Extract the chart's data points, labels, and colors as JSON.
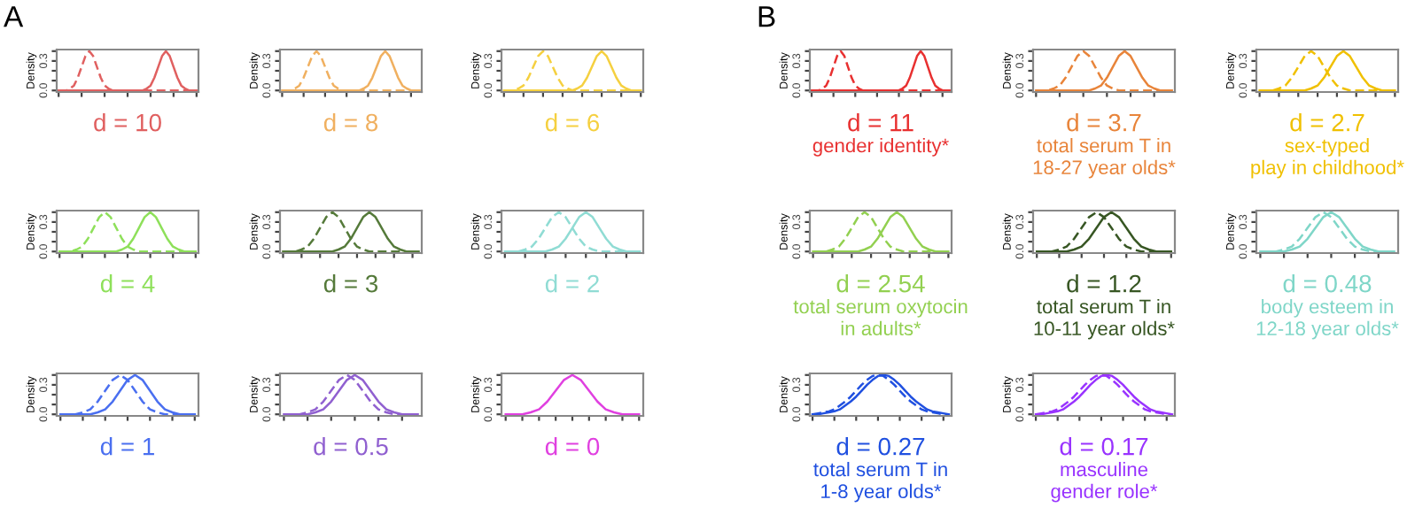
{
  "chart_data": [
    {
      "type": "line",
      "title": "d = 10",
      "annotations": [
        "A"
      ],
      "ylabel": "Density",
      "ylim": [
        -0.016,
        0.416
      ],
      "yticks": [
        {
          "value": 0.0,
          "label": "0.0"
        },
        {
          "value": 0.1,
          "label": null
        },
        {
          "value": 0.2,
          "label": null
        },
        {
          "value": 0.3,
          "label": "0.3"
        },
        {
          "value": 0.4,
          "label": null
        }
      ],
      "tick_labels": "y",
      "categories": [
        null,
        null,
        null,
        null,
        null,
        null,
        null,
        null,
        null,
        null,
        null,
        null,
        null,
        null,
        null,
        null,
        null,
        null,
        null,
        null,
        null,
        null,
        null,
        null,
        null,
        null,
        null,
        null,
        null,
        null,
        null,
        null,
        null,
        null,
        null,
        null,
        null
      ],
      "series": [
        {
          "color": "#e06060",
          "line_style": "dashed",
          "values": [
            0,
            0,
            0,
            0.02,
            0.05,
            0.13,
            0.24,
            0.35,
            0.4,
            0.35,
            0.24,
            0.13,
            0.05,
            0.02,
            0,
            0,
            0,
            0,
            0,
            0,
            0,
            0,
            0,
            0,
            0,
            0,
            0,
            0,
            0,
            0,
            0,
            0,
            0,
            0,
            0,
            0,
            0
          ]
        },
        {
          "color": "#e06060",
          "line_style": "solid",
          "values": [
            0,
            0,
            0,
            0,
            0,
            0,
            0,
            0,
            0,
            0,
            0,
            0,
            0,
            0,
            0,
            0,
            0,
            0,
            0,
            0,
            0,
            0,
            0,
            0.02,
            0.05,
            0.13,
            0.24,
            0.35,
            0.4,
            0.35,
            0.24,
            0.13,
            0.05,
            0.02,
            0,
            0,
            0
          ]
        }
      ]
    },
    {
      "type": "line",
      "title": "d = 8",
      "ylabel": "Density",
      "ylim": [
        -0.016,
        0.416
      ],
      "yticks": [
        {
          "value": 0.0,
          "label": "0.0"
        },
        {
          "value": 0.1,
          "label": null
        },
        {
          "value": 0.2,
          "label": null
        },
        {
          "value": 0.3,
          "label": "0.3"
        },
        {
          "value": 0.4,
          "label": null
        }
      ],
      "tick_labels": "y",
      "categories": [
        null,
        null,
        null,
        null,
        null,
        null,
        null,
        null,
        null,
        null,
        null,
        null,
        null,
        null,
        null,
        null,
        null,
        null,
        null,
        null,
        null,
        null,
        null,
        null,
        null,
        null,
        null,
        null,
        null,
        null,
        null,
        null,
        null
      ],
      "series": [
        {
          "color": "#f0b060",
          "line_style": "dashed",
          "values": [
            0,
            0,
            0,
            0.02,
            0.05,
            0.13,
            0.24,
            0.35,
            0.4,
            0.35,
            0.24,
            0.13,
            0.05,
            0.02,
            0,
            0,
            0,
            0,
            0,
            0,
            0,
            0,
            0,
            0,
            0,
            0,
            0,
            0,
            0,
            0,
            0,
            0,
            0
          ]
        },
        {
          "color": "#f0b060",
          "line_style": "solid",
          "values": [
            0,
            0,
            0,
            0,
            0,
            0,
            0,
            0,
            0,
            0,
            0,
            0,
            0,
            0,
            0,
            0,
            0,
            0,
            0,
            0.02,
            0.05,
            0.13,
            0.24,
            0.35,
            0.4,
            0.35,
            0.24,
            0.13,
            0.05,
            0.02,
            0,
            0,
            0
          ]
        }
      ]
    },
    {
      "type": "line",
      "title": "d = 6",
      "ylabel": "Density",
      "ylim": [
        -0.016,
        0.416
      ],
      "yticks": [
        {
          "value": 0.0,
          "label": "0.0"
        },
        {
          "value": 0.1,
          "label": null
        },
        {
          "value": 0.2,
          "label": null
        },
        {
          "value": 0.3,
          "label": "0.3"
        },
        {
          "value": 0.4,
          "label": null
        }
      ],
      "tick_labels": "y",
      "categories": [
        null,
        null,
        null,
        null,
        null,
        null,
        null,
        null,
        null,
        null,
        null,
        null,
        null,
        null,
        null,
        null,
        null,
        null,
        null,
        null,
        null,
        null,
        null,
        null,
        null,
        null,
        null,
        null,
        null
      ],
      "series": [
        {
          "color": "#f5d040",
          "line_style": "dashed",
          "values": [
            0,
            0,
            0,
            0.02,
            0.05,
            0.13,
            0.24,
            0.35,
            0.4,
            0.35,
            0.24,
            0.13,
            0.05,
            0.02,
            0,
            0,
            0,
            0,
            0,
            0,
            0,
            0,
            0,
            0,
            0,
            0,
            0,
            0,
            0
          ]
        },
        {
          "color": "#f5d040",
          "line_style": "solid",
          "values": [
            0,
            0,
            0,
            0,
            0,
            0,
            0,
            0,
            0,
            0,
            0,
            0,
            0,
            0,
            0,
            0.02,
            0.05,
            0.13,
            0.24,
            0.35,
            0.4,
            0.35,
            0.24,
            0.13,
            0.05,
            0.02,
            0,
            0,
            0
          ]
        }
      ]
    },
    {
      "type": "line",
      "title": "d = 4",
      "ylabel": "Density",
      "ylim": [
        -0.016,
        0.416
      ],
      "yticks": [
        {
          "value": 0.0,
          "label": "0.0"
        },
        {
          "value": 0.1,
          "label": null
        },
        {
          "value": 0.2,
          "label": null
        },
        {
          "value": 0.3,
          "label": "0.3"
        },
        {
          "value": 0.4,
          "label": null
        }
      ],
      "tick_labels": "y",
      "categories": [
        null,
        null,
        null,
        null,
        null,
        null,
        null,
        null,
        null,
        null,
        null,
        null,
        null,
        null,
        null,
        null,
        null,
        null,
        null,
        null,
        null,
        null,
        null,
        null,
        null
      ],
      "series": [
        {
          "color": "#8ee05a",
          "line_style": "dashed",
          "values": [
            0,
            0,
            0,
            0.02,
            0.05,
            0.13,
            0.24,
            0.35,
            0.4,
            0.35,
            0.24,
            0.13,
            0.05,
            0.02,
            0,
            0,
            0,
            0,
            0,
            0,
            0,
            0,
            0,
            0,
            0
          ]
        },
        {
          "color": "#8ee05a",
          "line_style": "solid",
          "values": [
            0,
            0,
            0,
            0,
            0,
            0,
            0,
            0,
            0,
            0,
            0,
            0.02,
            0.05,
            0.13,
            0.24,
            0.35,
            0.4,
            0.35,
            0.24,
            0.13,
            0.05,
            0.02,
            0,
            0,
            0
          ]
        }
      ]
    },
    {
      "type": "line",
      "title": "d = 3",
      "ylabel": "Density",
      "ylim": [
        -0.016,
        0.416
      ],
      "yticks": [
        {
          "value": 0.0,
          "label": "0.0"
        },
        {
          "value": 0.1,
          "label": null
        },
        {
          "value": 0.2,
          "label": null
        },
        {
          "value": 0.3,
          "label": "0.3"
        },
        {
          "value": 0.4,
          "label": null
        }
      ],
      "tick_labels": "y",
      "categories": [
        null,
        null,
        null,
        null,
        null,
        null,
        null,
        null,
        null,
        null,
        null,
        null,
        null,
        null,
        null,
        null,
        null,
        null,
        null,
        null,
        null,
        null,
        null
      ],
      "series": [
        {
          "color": "#557a3a",
          "line_style": "dashed",
          "values": [
            0,
            0,
            0,
            0.02,
            0.05,
            0.13,
            0.24,
            0.35,
            0.4,
            0.35,
            0.24,
            0.13,
            0.05,
            0.02,
            0,
            0,
            0,
            0,
            0,
            0,
            0,
            0,
            0
          ]
        },
        {
          "color": "#557a3a",
          "line_style": "solid",
          "values": [
            0,
            0,
            0,
            0,
            0,
            0,
            0,
            0,
            0,
            0.02,
            0.05,
            0.13,
            0.24,
            0.35,
            0.4,
            0.35,
            0.24,
            0.13,
            0.05,
            0.02,
            0,
            0,
            0
          ]
        }
      ]
    },
    {
      "type": "line",
      "title": "d = 2",
      "ylabel": "Density",
      "ylim": [
        -0.016,
        0.416
      ],
      "yticks": [
        {
          "value": 0.0,
          "label": "0.0"
        },
        {
          "value": 0.1,
          "label": null
        },
        {
          "value": 0.2,
          "label": null
        },
        {
          "value": 0.3,
          "label": "0.3"
        },
        {
          "value": 0.4,
          "label": null
        }
      ],
      "tick_labels": "y",
      "categories": [
        null,
        null,
        null,
        null,
        null,
        null,
        null,
        null,
        null,
        null,
        null,
        null,
        null,
        null,
        null,
        null,
        null,
        null,
        null,
        null,
        null
      ],
      "series": [
        {
          "color": "#90dcd4",
          "line_style": "dashed",
          "values": [
            0,
            0,
            0,
            0.02,
            0.05,
            0.13,
            0.24,
            0.35,
            0.4,
            0.35,
            0.24,
            0.13,
            0.05,
            0.02,
            0,
            0,
            0,
            0,
            0,
            0,
            0
          ]
        },
        {
          "color": "#90dcd4",
          "line_style": "solid",
          "values": [
            0,
            0,
            0,
            0,
            0,
            0,
            0,
            0.02,
            0.05,
            0.13,
            0.24,
            0.35,
            0.4,
            0.35,
            0.24,
            0.13,
            0.05,
            0.02,
            0,
            0,
            0
          ]
        }
      ]
    },
    {
      "type": "line",
      "title": "d = 1",
      "ylabel": "Density",
      "ylim": [
        -0.016,
        0.416
      ],
      "yticks": [
        {
          "value": 0.0,
          "label": "0.0"
        },
        {
          "value": 0.1,
          "label": null
        },
        {
          "value": 0.2,
          "label": null
        },
        {
          "value": 0.3,
          "label": "0.3"
        },
        {
          "value": 0.4,
          "label": null
        }
      ],
      "tick_labels": "y",
      "categories": [
        null,
        null,
        null,
        null,
        null,
        null,
        null,
        null,
        null,
        null,
        null,
        null,
        null,
        null,
        null,
        null,
        null,
        null,
        null
      ],
      "series": [
        {
          "color": "#4a6ff0",
          "line_style": "dashed",
          "values": [
            0,
            0,
            0,
            0.02,
            0.05,
            0.13,
            0.24,
            0.35,
            0.4,
            0.35,
            0.24,
            0.13,
            0.05,
            0.02,
            0,
            0,
            0,
            0,
            0
          ]
        },
        {
          "color": "#4a6ff0",
          "line_style": "solid",
          "values": [
            0,
            0,
            0,
            0,
            0,
            0.02,
            0.05,
            0.13,
            0.24,
            0.35,
            0.4,
            0.35,
            0.24,
            0.13,
            0.05,
            0.02,
            0,
            0,
            0
          ]
        }
      ]
    },
    {
      "type": "line",
      "title": "d = 0.5",
      "ylabel": "Density",
      "ylim": [
        -0.016,
        0.416
      ],
      "yticks": [
        {
          "value": 0.0,
          "label": "0.0"
        },
        {
          "value": 0.1,
          "label": null
        },
        {
          "value": 0.2,
          "label": null
        },
        {
          "value": 0.3,
          "label": "0.3"
        },
        {
          "value": 0.4,
          "label": null
        }
      ],
      "tick_labels": "y",
      "categories": [
        null,
        null,
        null,
        null,
        null,
        null,
        null,
        null,
        null,
        null,
        null,
        null,
        null,
        null,
        null,
        null,
        null,
        null
      ],
      "series": [
        {
          "color": "#9060d0",
          "line_style": "dashed",
          "values": [
            0,
            0,
            0,
            0.02,
            0.05,
            0.13,
            0.24,
            0.35,
            0.4,
            0.35,
            0.24,
            0.13,
            0.05,
            0.02,
            0,
            0,
            0,
            0
          ]
        },
        {
          "color": "#9060d0",
          "line_style": "solid",
          "values": [
            0,
            0,
            0,
            0,
            0.02,
            0.05,
            0.13,
            0.24,
            0.35,
            0.4,
            0.35,
            0.24,
            0.13,
            0.05,
            0.02,
            0,
            0,
            0
          ]
        }
      ]
    },
    {
      "type": "line",
      "title": "d = 0",
      "ylabel": "Density",
      "ylim": [
        -0.016,
        0.416
      ],
      "yticks": [
        {
          "value": 0.0,
          "label": "0.0"
        },
        {
          "value": 0.1,
          "label": null
        },
        {
          "value": 0.2,
          "label": null
        },
        {
          "value": 0.3,
          "label": "0.3"
        },
        {
          "value": 0.4,
          "label": null
        }
      ],
      "tick_labels": "y",
      "categories": [
        null,
        null,
        null,
        null,
        null,
        null,
        null,
        null,
        null,
        null,
        null,
        null,
        null,
        null,
        null,
        null,
        null
      ],
      "series": [
        {
          "color": "#e040e0",
          "line_style": "solid",
          "values": [
            0,
            0,
            0,
            0.02,
            0.05,
            0.13,
            0.24,
            0.35,
            0.4,
            0.35,
            0.24,
            0.13,
            0.05,
            0.02,
            0,
            0,
            0
          ]
        }
      ]
    },
    {
      "type": "line",
      "title": "d = 11",
      "subtitle": "gender identity*",
      "annotations": [
        "B"
      ],
      "ylabel": "Density",
      "ylim": [
        -0.016,
        0.416
      ],
      "yticks": [
        {
          "value": 0.0,
          "label": "0.0"
        },
        {
          "value": 0.1,
          "label": null
        },
        {
          "value": 0.2,
          "label": null
        },
        {
          "value": 0.3,
          "label": "0.3"
        },
        {
          "value": 0.4,
          "label": null
        }
      ],
      "tick_labels": "y",
      "categories": [
        null,
        null,
        null,
        null,
        null,
        null,
        null,
        null,
        null,
        null,
        null,
        null,
        null,
        null,
        null,
        null,
        null,
        null,
        null,
        null,
        null,
        null,
        null,
        null,
        null,
        null,
        null,
        null,
        null,
        null,
        null,
        null,
        null,
        null,
        null,
        null,
        null,
        null,
        null
      ],
      "series": [
        {
          "color": "#e83030",
          "line_style": "dashed",
          "values": [
            0,
            0,
            0,
            0.02,
            0.05,
            0.13,
            0.24,
            0.35,
            0.4,
            0.35,
            0.24,
            0.13,
            0.05,
            0.02,
            0,
            0,
            0,
            0,
            0,
            0,
            0,
            0,
            0,
            0,
            0,
            0,
            0,
            0,
            0,
            0,
            0,
            0,
            0,
            0,
            0,
            0,
            0,
            0,
            0
          ]
        },
        {
          "color": "#e83030",
          "line_style": "solid",
          "values": [
            0,
            0,
            0,
            0,
            0,
            0,
            0,
            0,
            0,
            0,
            0,
            0,
            0,
            0,
            0,
            0,
            0,
            0,
            0,
            0,
            0,
            0,
            0,
            0,
            0,
            0.02,
            0.05,
            0.13,
            0.24,
            0.35,
            0.4,
            0.35,
            0.24,
            0.13,
            0.05,
            0.02,
            0,
            0,
            0
          ]
        }
      ]
    },
    {
      "type": "line",
      "title": "d = 3.7",
      "subtitle": "total serum T in\n18-27 year olds*",
      "ylabel": "Density",
      "ylim": [
        -0.016,
        0.416
      ],
      "yticks": [
        {
          "value": 0.0,
          "label": "0.0"
        },
        {
          "value": 0.1,
          "label": null
        },
        {
          "value": 0.2,
          "label": null
        },
        {
          "value": 0.3,
          "label": "0.3"
        },
        {
          "value": 0.4,
          "label": null
        }
      ],
      "tick_labels": "y",
      "categories": [
        null,
        null,
        null,
        null,
        null,
        null,
        null,
        null,
        null,
        null,
        null,
        null,
        null,
        null,
        null,
        null,
        null,
        null,
        null,
        null,
        null,
        null,
        null,
        null
      ],
      "series": [
        {
          "color": "#e8843a",
          "line_style": "dashed",
          "values": [
            0,
            0,
            0,
            0.02,
            0.05,
            0.13,
            0.24,
            0.35,
            0.4,
            0.35,
            0.24,
            0.13,
            0.05,
            0.02,
            0,
            0,
            0,
            0,
            0,
            0,
            0,
            0,
            0,
            0
          ]
        },
        {
          "color": "#e8843a",
          "line_style": "solid",
          "values": [
            0,
            0,
            0,
            0,
            0,
            0,
            0,
            0,
            0,
            0,
            0.02,
            0.05,
            0.13,
            0.24,
            0.35,
            0.4,
            0.35,
            0.24,
            0.13,
            0.05,
            0.02,
            0,
            0,
            0
          ]
        }
      ]
    },
    {
      "type": "line",
      "title": "d = 2.7",
      "subtitle": "sex-typed\nplay in childhood*",
      "ylabel": "Density",
      "ylim": [
        -0.016,
        0.416
      ],
      "yticks": [
        {
          "value": 0.0,
          "label": "0.0"
        },
        {
          "value": 0.1,
          "label": null
        },
        {
          "value": 0.2,
          "label": null
        },
        {
          "value": 0.3,
          "label": "0.3"
        },
        {
          "value": 0.4,
          "label": null
        }
      ],
      "tick_labels": "y",
      "categories": [
        null,
        null,
        null,
        null,
        null,
        null,
        null,
        null,
        null,
        null,
        null,
        null,
        null,
        null,
        null,
        null,
        null,
        null,
        null,
        null,
        null,
        null
      ],
      "series": [
        {
          "color": "#f0c000",
          "line_style": "dashed",
          "values": [
            0,
            0,
            0,
            0.02,
            0.05,
            0.13,
            0.24,
            0.35,
            0.4,
            0.35,
            0.24,
            0.13,
            0.05,
            0.02,
            0,
            0,
            0,
            0,
            0,
            0,
            0,
            0
          ]
        },
        {
          "color": "#f0c000",
          "line_style": "solid",
          "values": [
            0,
            0,
            0,
            0,
            0,
            0,
            0,
            0,
            0.02,
            0.05,
            0.13,
            0.24,
            0.35,
            0.4,
            0.35,
            0.24,
            0.13,
            0.05,
            0.02,
            0,
            0,
            0
          ]
        }
      ]
    },
    {
      "type": "line",
      "title": "d = 2.54",
      "subtitle": "total serum oxytocin\nin adults*",
      "ylabel": "Density",
      "ylim": [
        -0.016,
        0.416
      ],
      "yticks": [
        {
          "value": 0.0,
          "label": "0.0"
        },
        {
          "value": 0.1,
          "label": null
        },
        {
          "value": 0.2,
          "label": null
        },
        {
          "value": 0.3,
          "label": "0.3"
        },
        {
          "value": 0.4,
          "label": null
        }
      ],
      "tick_labels": "y",
      "categories": [
        null,
        null,
        null,
        null,
        null,
        null,
        null,
        null,
        null,
        null,
        null,
        null,
        null,
        null,
        null,
        null,
        null,
        null,
        null,
        null,
        null,
        null
      ],
      "series": [
        {
          "color": "#92d050",
          "line_style": "dashed",
          "values": [
            0,
            0,
            0,
            0.02,
            0.05,
            0.13,
            0.24,
            0.35,
            0.4,
            0.35,
            0.24,
            0.13,
            0.05,
            0.02,
            0,
            0,
            0,
            0,
            0,
            0,
            0,
            0
          ]
        },
        {
          "color": "#92d050",
          "line_style": "solid",
          "values": [
            0,
            0,
            0,
            0,
            0,
            0,
            0,
            0,
            0.02,
            0.05,
            0.13,
            0.24,
            0.35,
            0.4,
            0.35,
            0.24,
            0.13,
            0.05,
            0.02,
            0,
            0,
            0
          ]
        }
      ]
    },
    {
      "type": "line",
      "title": "d = 1.2",
      "subtitle": "total serum T in\n10-11 year olds*",
      "ylabel": "Density",
      "ylim": [
        -0.016,
        0.416
      ],
      "yticks": [
        {
          "value": 0.0,
          "label": "0.0"
        },
        {
          "value": 0.1,
          "label": null
        },
        {
          "value": 0.2,
          "label": null
        },
        {
          "value": 0.3,
          "label": "0.3"
        },
        {
          "value": 0.4,
          "label": null
        }
      ],
      "tick_labels": "y",
      "categories": [
        null,
        null,
        null,
        null,
        null,
        null,
        null,
        null,
        null,
        null,
        null,
        null,
        null,
        null,
        null,
        null,
        null,
        null,
        null
      ],
      "series": [
        {
          "color": "#375623",
          "line_style": "dashed",
          "values": [
            0,
            0,
            0,
            0.02,
            0.05,
            0.13,
            0.24,
            0.35,
            0.4,
            0.35,
            0.24,
            0.13,
            0.05,
            0.02,
            0,
            0,
            0,
            0,
            0
          ]
        },
        {
          "color": "#375623",
          "line_style": "solid",
          "values": [
            0,
            0,
            0,
            0,
            0,
            0.02,
            0.05,
            0.13,
            0.24,
            0.35,
            0.4,
            0.35,
            0.24,
            0.13,
            0.05,
            0.02,
            0,
            0,
            0
          ]
        }
      ]
    },
    {
      "type": "line",
      "title": "d = 0.48",
      "subtitle": "body esteem in\n12-18 year olds*",
      "ylabel": "Density",
      "ylim": [
        -0.016,
        0.416
      ],
      "yticks": [
        {
          "value": 0.0,
          "label": "0.0"
        },
        {
          "value": 0.1,
          "label": null
        },
        {
          "value": 0.2,
          "label": null
        },
        {
          "value": 0.3,
          "label": "0.3"
        },
        {
          "value": 0.4,
          "label": null
        }
      ],
      "tick_labels": "y",
      "categories": [
        null,
        null,
        null,
        null,
        null,
        null,
        null,
        null,
        null,
        null,
        null,
        null,
        null,
        null,
        null,
        null,
        null,
        null
      ],
      "series": [
        {
          "color": "#7fd6c8",
          "line_style": "dashed",
          "values": [
            0,
            0,
            0,
            0.02,
            0.05,
            0.13,
            0.24,
            0.35,
            0.4,
            0.35,
            0.24,
            0.13,
            0.05,
            0.02,
            0,
            0,
            0,
            0
          ]
        },
        {
          "color": "#7fd6c8",
          "line_style": "solid",
          "values": [
            0,
            0,
            0,
            0,
            0.02,
            0.05,
            0.13,
            0.24,
            0.35,
            0.4,
            0.35,
            0.24,
            0.13,
            0.05,
            0.02,
            0,
            0,
            0
          ]
        }
      ]
    },
    {
      "type": "line",
      "title": "d = 0.27",
      "subtitle": "total serum T in\n1-8 year olds*",
      "ylabel": "Density",
      "ylim": [
        -0.016,
        0.416
      ],
      "yticks": [
        {
          "value": 0.0,
          "label": "0.0"
        },
        {
          "value": 0.1,
          "label": null
        },
        {
          "value": 0.2,
          "label": null
        },
        {
          "value": 0.3,
          "label": "0.3"
        },
        {
          "value": 0.4,
          "label": null
        }
      ],
      "tick_labels": "y",
      "categories": [
        null,
        null,
        null,
        null,
        null,
        null,
        null,
        null,
        null,
        null,
        null,
        null,
        null,
        null,
        null,
        null,
        null,
        null,
        null,
        null,
        null,
        null,
        null,
        null,
        null,
        null
      ],
      "series": [
        {
          "color": "#2050e0",
          "line_style": "dashed",
          "values": [
            0,
            0.01,
            0.02,
            0.03,
            0.05,
            0.09,
            0.13,
            0.18,
            0.24,
            0.3,
            0.35,
            0.39,
            0.4,
            0.39,
            0.35,
            0.3,
            0.24,
            0.18,
            0.13,
            0.09,
            0.05,
            0.03,
            0.02,
            0.01,
            0,
            0
          ]
        },
        {
          "color": "#2050e0",
          "line_style": "solid",
          "values": [
            0,
            0,
            0.01,
            0.02,
            0.03,
            0.05,
            0.09,
            0.13,
            0.18,
            0.24,
            0.3,
            0.35,
            0.39,
            0.4,
            0.39,
            0.35,
            0.3,
            0.24,
            0.18,
            0.13,
            0.09,
            0.05,
            0.03,
            0.02,
            0.01,
            0
          ]
        }
      ]
    },
    {
      "type": "line",
      "title": "d = 0.17",
      "subtitle": "masculine\ngender role*",
      "ylabel": "Density",
      "ylim": [
        -0.016,
        0.416
      ],
      "yticks": [
        {
          "value": 0.0,
          "label": "0.0"
        },
        {
          "value": 0.1,
          "label": null
        },
        {
          "value": 0.2,
          "label": null
        },
        {
          "value": 0.3,
          "label": "0.3"
        },
        {
          "value": 0.4,
          "label": null
        }
      ],
      "tick_labels": "y",
      "categories": [
        null,
        null,
        null,
        null,
        null,
        null,
        null,
        null,
        null,
        null,
        null,
        null,
        null,
        null,
        null,
        null,
        null,
        null,
        null,
        null,
        null,
        null,
        null,
        null,
        null,
        null
      ],
      "series": [
        {
          "color": "#9933ff",
          "line_style": "dashed",
          "values": [
            0,
            0.01,
            0.02,
            0.03,
            0.05,
            0.09,
            0.13,
            0.18,
            0.24,
            0.3,
            0.35,
            0.39,
            0.4,
            0.39,
            0.35,
            0.3,
            0.24,
            0.18,
            0.13,
            0.09,
            0.05,
            0.03,
            0.02,
            0.01,
            0,
            0
          ]
        },
        {
          "color": "#9933ff",
          "line_style": "solid",
          "values": [
            0,
            0,
            0.01,
            0.02,
            0.03,
            0.05,
            0.09,
            0.13,
            0.18,
            0.24,
            0.3,
            0.35,
            0.39,
            0.4,
            0.39,
            0.35,
            0.3,
            0.24,
            0.18,
            0.13,
            0.09,
            0.05,
            0.03,
            0.02,
            0.01,
            0
          ]
        }
      ]
    }
  ]
}
